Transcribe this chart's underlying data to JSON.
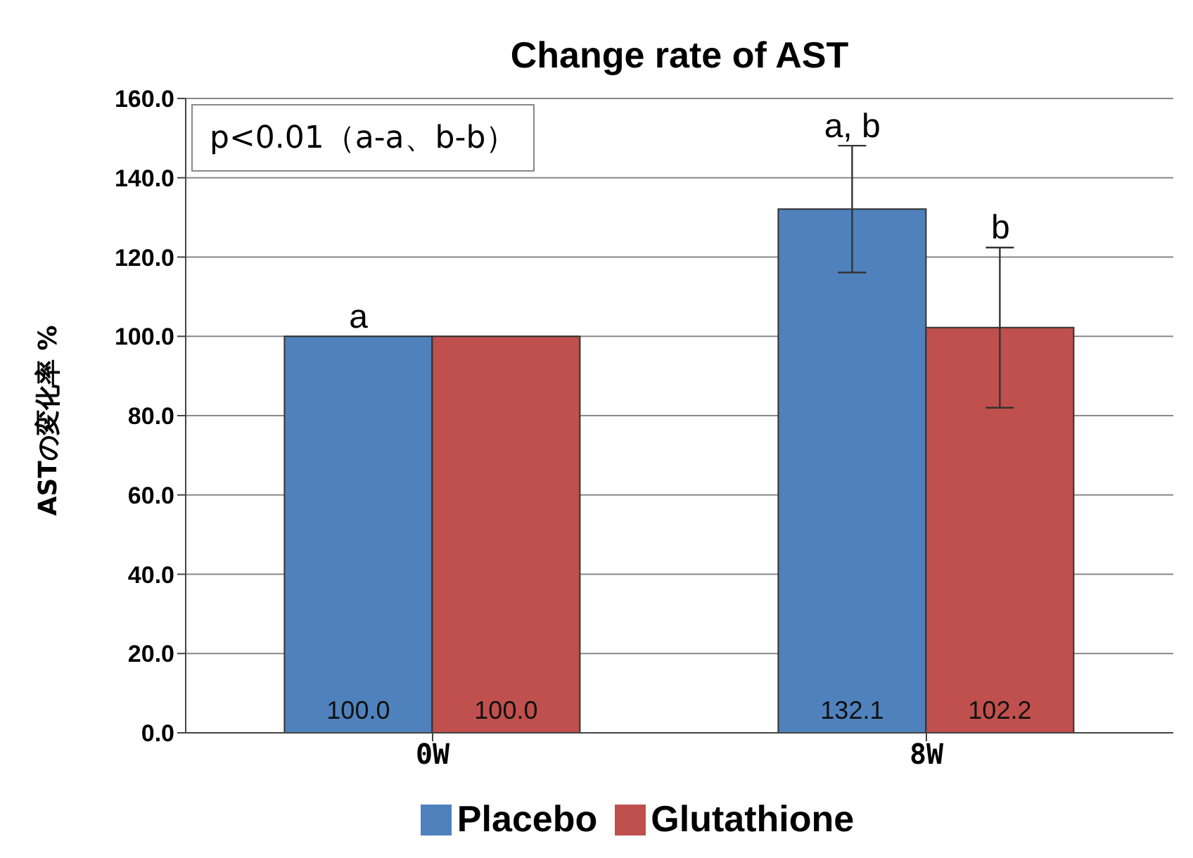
{
  "chart_data": {
    "type": "bar",
    "title": "Change rate of  AST",
    "ylabel": "ASTの変化率 %",
    "categories": [
      "0W",
      "8W"
    ],
    "series": [
      {
        "name": "Placebo",
        "color": "#4f81bd",
        "values": [
          100.0,
          132.1
        ],
        "value_labels": [
          "100.0",
          "132.1"
        ],
        "errors": [
          null,
          16
        ]
      },
      {
        "name": "Glutathione",
        "color": "#c0504d",
        "values": [
          100.0,
          102.2
        ],
        "value_labels": [
          "100.0",
          "102.2"
        ],
        "errors": [
          null,
          20.2
        ]
      }
    ],
    "ylim": [
      0,
      160
    ],
    "yticks": [
      {
        "value": 0,
        "label": "0.0"
      },
      {
        "value": 20,
        "label": "20.0"
      },
      {
        "value": 40,
        "label": "40.0"
      },
      {
        "value": 60,
        "label": "60.0"
      },
      {
        "value": 80,
        "label": "80.0"
      },
      {
        "value": 100,
        "label": "100.0"
      },
      {
        "value": 120,
        "label": "120.0"
      },
      {
        "value": 140,
        "label": "140.0"
      },
      {
        "value": 160,
        "label": "160.0"
      }
    ],
    "grid": "y",
    "legend": "bottom",
    "annotations": [
      "p<0.01（a-a、b-b）",
      {
        "text": "a",
        "x": "0W",
        "y": 100
      },
      {
        "text": "a, b",
        "x": "8W",
        "y": 132.1
      },
      {
        "text": "b",
        "x": "8W",
        "y": 122.5
      }
    ]
  }
}
